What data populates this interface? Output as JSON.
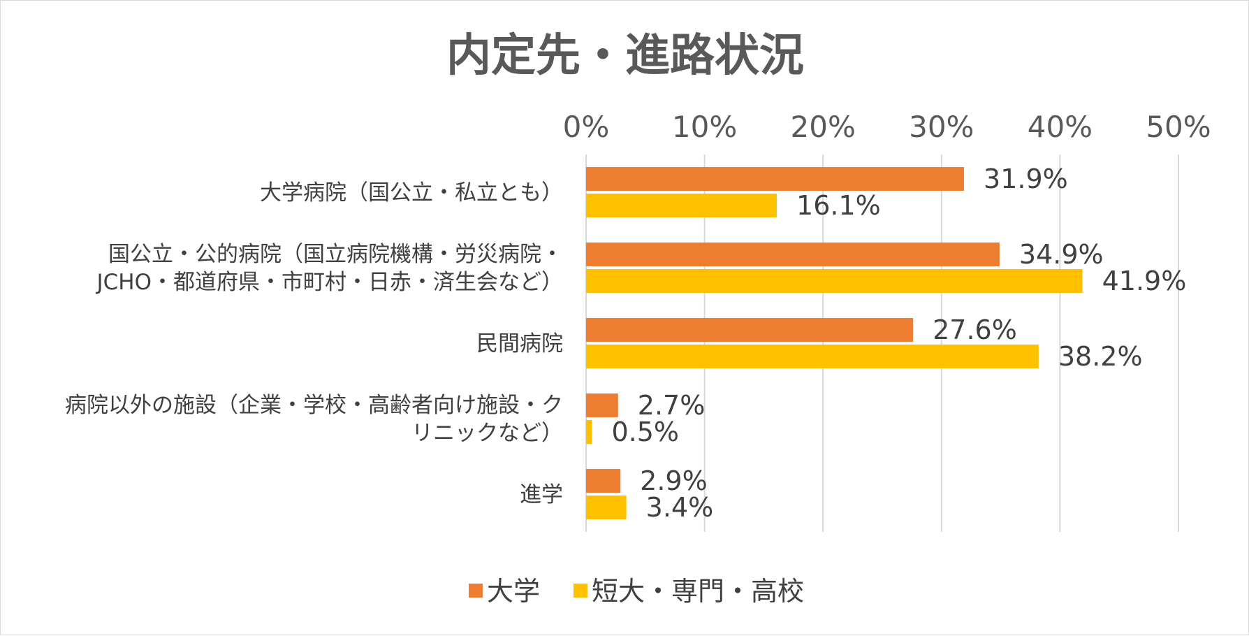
{
  "chart_data": {
    "type": "bar",
    "orientation": "horizontal",
    "title": "内定先・進路状況",
    "xlim": [
      0,
      50
    ],
    "ticks": [
      {
        "value": 0,
        "label": "0%"
      },
      {
        "value": 10,
        "label": "10%"
      },
      {
        "value": 20,
        "label": "20%"
      },
      {
        "value": 30,
        "label": "30%"
      },
      {
        "value": 40,
        "label": "40%"
      },
      {
        "value": 50,
        "label": "50%"
      }
    ],
    "grid": true,
    "legend_position": "bottom",
    "categories": [
      [
        "大学病院（国公立・私立とも）"
      ],
      [
        "国公立・公的病院（国立病院機構・労災病院・",
        "JCHO・都道府県・市町村・日赤・済生会など）"
      ],
      [
        "民間病院"
      ],
      [
        "病院以外の施設（企業・学校・高齢者向け施設・ク",
        "リニックなど）"
      ],
      [
        "進学"
      ]
    ],
    "series": [
      {
        "name": "大学",
        "color": "#ED7D31",
        "values": [
          31.9,
          34.9,
          27.6,
          2.7,
          2.9
        ],
        "labels": [
          "31.9%",
          "34.9%",
          "27.6%",
          "2.7%",
          "2.9%"
        ]
      },
      {
        "name": "短大・専門・高校",
        "color": "#FFC000",
        "values": [
          16.1,
          41.9,
          38.2,
          0.5,
          3.4
        ],
        "labels": [
          "16.1%",
          "41.9%",
          "38.2%",
          "0.5%",
          "3.4%"
        ]
      }
    ]
  }
}
